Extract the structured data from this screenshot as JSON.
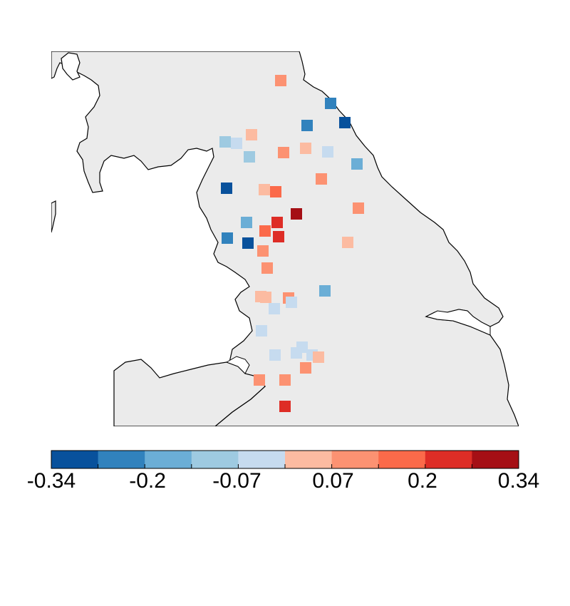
{
  "colors": {
    "land": "#ebebeb",
    "sea": "#ffffff",
    "coastline": "#000000",
    "palette": [
      "#08519c",
      "#3182bd",
      "#6baed6",
      "#9ecae1",
      "#c6dbef",
      "#fcbba1",
      "#fc9272",
      "#fb6a4a",
      "#de2d26",
      "#a50f15"
    ]
  },
  "legend": {
    "breaks": [
      -0.34,
      -0.27,
      -0.2,
      -0.14,
      -0.07,
      0,
      0.07,
      0.14,
      0.2,
      0.27,
      0.34
    ],
    "tick_labels": [
      "-0.34",
      "-0.2",
      "-0.07",
      "0.07",
      "0.2",
      "0.34"
    ],
    "tick_values": [
      -0.34,
      -0.2,
      -0.07,
      0.07,
      0.2,
      0.34
    ]
  },
  "stations": [
    {
      "value": 0.12
    },
    {
      "value": -0.23
    },
    {
      "value": -0.31
    },
    {
      "value": -0.24
    },
    {
      "value": -0.1
    },
    {
      "value": -0.05
    },
    {
      "value": 0.05
    },
    {
      "value": -0.12
    },
    {
      "value": 0.12
    },
    {
      "value": 0.05
    },
    {
      "value": -0.04
    },
    {
      "value": -0.18
    },
    {
      "value": 0.13
    },
    {
      "value": -0.32
    },
    {
      "value": 0.05
    },
    {
      "value": 0.2
    },
    {
      "value": 0.31
    },
    {
      "value": 0.08
    },
    {
      "value": -0.17
    },
    {
      "value": 0.17
    },
    {
      "value": 0.24
    },
    {
      "value": 0.24
    },
    {
      "value": 0.05
    },
    {
      "value": -0.26
    },
    {
      "value": -0.32
    },
    {
      "value": 0.12
    },
    {
      "value": 0.12
    },
    {
      "value": -0.19
    },
    {
      "value": 0.05
    },
    {
      "value": 0.05
    },
    {
      "value": 0.1
    },
    {
      "value": -0.03
    },
    {
      "value": -0.05
    },
    {
      "value": -0.05
    },
    {
      "value": -0.05
    },
    {
      "value": -0.05
    },
    {
      "value": -0.05
    },
    {
      "value": -0.05
    },
    {
      "value": 0.06
    },
    {
      "value": 0.12
    },
    {
      "value": 0.13
    },
    {
      "value": 0.13
    },
    {
      "value": 0.24
    }
  ]
}
